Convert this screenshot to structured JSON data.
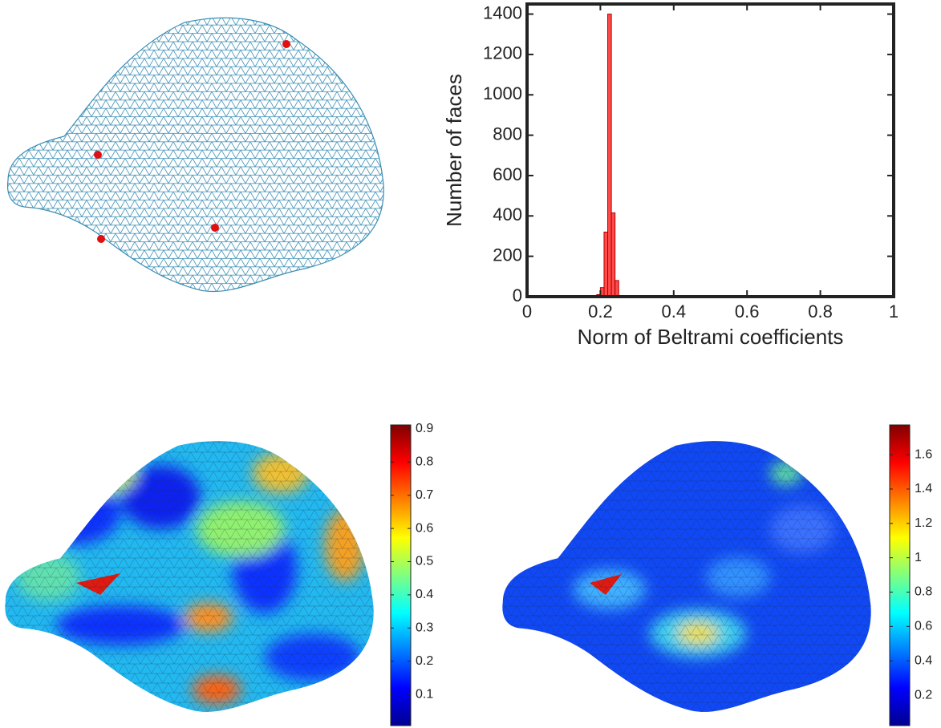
{
  "chart_data": [
    {
      "type": "histogram",
      "xlabel": "Norm of Beltrami coefficients",
      "ylabel": "Number of faces",
      "color": "#ff2a2a",
      "bins": [
        0,
        0.01,
        0.02,
        0.03,
        0.04,
        0.05,
        0.06,
        0.07,
        0.08,
        0.09,
        0.1,
        0.11,
        0.12,
        0.13,
        0.14,
        0.15,
        0.16,
        0.17,
        0.18,
        0.19,
        0.2,
        0.21,
        0.22,
        0.23,
        0.24,
        0.25,
        0.26,
        0.27,
        0.28,
        0.29,
        0.3,
        0.31,
        0.32,
        0.33,
        0.34,
        0.35,
        0.36,
        0.37,
        0.38,
        0.39,
        0.4,
        0.41,
        0.42,
        0.43,
        0.44,
        0.45,
        0.46,
        0.47,
        0.48,
        0.49,
        0.5,
        0.51,
        0.52,
        0.53,
        0.54,
        0.55,
        0.56,
        0.57,
        0.58,
        0.59,
        0.6,
        0.61,
        0.62,
        0.63,
        0.64,
        0.65,
        0.66,
        0.67,
        0.68,
        0.69,
        0.7,
        0.71,
        0.72,
        0.73,
        0.74,
        0.75,
        0.76,
        0.77,
        0.78,
        0.79,
        0.8,
        0.81,
        0.82,
        0.83,
        0.84,
        0.85,
        0.86,
        0.87,
        0.88,
        0.89,
        0.9,
        0.91,
        0.92,
        0.93,
        0.94,
        0.95,
        0.96,
        0.97,
        0.98,
        0.99,
        1
      ],
      "values": [
        0,
        0,
        0,
        0,
        0,
        0,
        0,
        0,
        0,
        0,
        0,
        0,
        0,
        0,
        0,
        0,
        0,
        0,
        0,
        10,
        45,
        320,
        1400,
        415,
        80,
        5,
        0,
        0,
        0,
        0,
        0,
        0,
        0,
        0,
        0,
        0,
        0,
        0,
        0,
        0,
        0,
        0,
        0,
        0,
        0,
        0,
        0,
        0,
        0,
        0,
        0,
        0,
        0,
        0,
        0,
        0,
        0,
        0,
        0,
        0,
        0,
        0,
        0,
        0,
        0,
        0,
        0,
        0,
        0,
        0,
        0,
        0,
        0,
        0,
        0,
        0,
        0,
        0,
        0,
        0,
        0,
        0,
        0,
        0,
        0,
        0,
        0,
        0,
        0,
        0,
        0,
        0,
        0,
        0,
        0,
        0,
        0,
        0,
        0,
        0
      ],
      "xlim": [
        0,
        1
      ],
      "xticks": [
        0,
        0.2,
        0.4,
        0.6,
        0.8,
        1
      ],
      "ylim": [
        0,
        1450
      ],
      "yticks": [
        0,
        200,
        400,
        600,
        800,
        1000,
        1200,
        1400
      ]
    },
    {
      "type": "colorbar",
      "ylim": [
        0.006,
        0.912
      ],
      "yticks": [
        0.1,
        0.2,
        0.3,
        0.4,
        0.5,
        0.6,
        0.7,
        0.8,
        0.9
      ]
    },
    {
      "type": "colorbar",
      "ylim": [
        0.023,
        1.773
      ],
      "yticks": [
        0.2,
        0.4,
        0.6,
        0.8,
        1,
        1.2,
        1.4,
        1.6
      ]
    }
  ]
}
